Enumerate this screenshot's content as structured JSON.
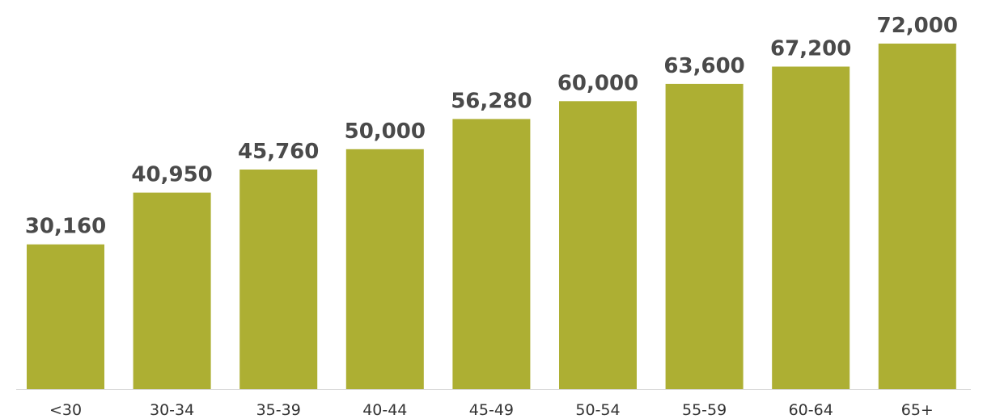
{
  "chart_data": {
    "type": "bar",
    "categories": [
      "<30",
      "30-34",
      "35-39",
      "40-44",
      "45-49",
      "50-54",
      "55-59",
      "60-64",
      "65+"
    ],
    "values": [
      30160,
      40950,
      45760,
      50000,
      56280,
      60000,
      63600,
      67200,
      72000
    ],
    "value_labels": [
      "30,160",
      "40,950",
      "45,760",
      "50,000",
      "56,280",
      "60,000",
      "63,600",
      "67,200",
      "72,000"
    ],
    "title": "",
    "xlabel": "",
    "ylabel": "",
    "ylim": [
      0,
      72000
    ],
    "grid": false,
    "legend": "none",
    "colors": {
      "bar": "#adaf33",
      "baseline": "#d9d9d9",
      "value_label": "#4a4a4a",
      "tick_label": "#333333"
    }
  }
}
